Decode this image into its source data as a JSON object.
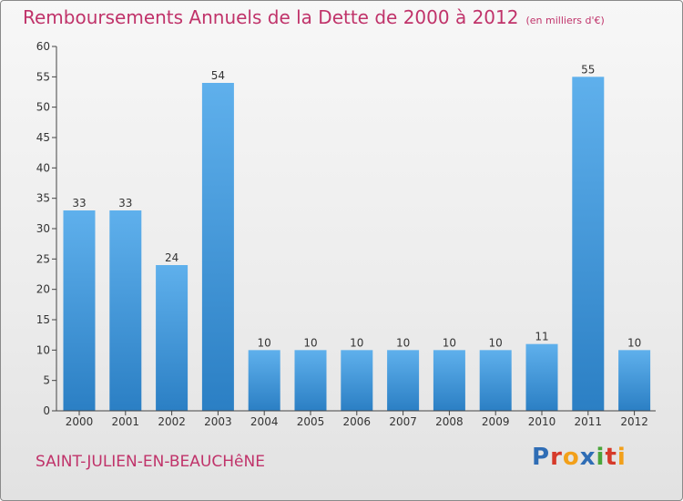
{
  "chart_data": {
    "type": "bar",
    "title": "Remboursements Annuels de la Dette de 2000 à 2012",
    "subtitle": "(en milliers d'€)",
    "categories": [
      "2000",
      "2001",
      "2002",
      "2003",
      "2004",
      "2005",
      "2006",
      "2007",
      "2008",
      "2009",
      "2010",
      "2011",
      "2012"
    ],
    "values": [
      33,
      33,
      24,
      54,
      10,
      10,
      10,
      10,
      10,
      10,
      11,
      55,
      10
    ],
    "data_labels": [
      "33",
      "33",
      "24",
      "54",
      "10",
      "10",
      "10",
      "10",
      "10",
      "10",
      "11",
      "55",
      "10"
    ],
    "ylim": [
      0,
      60
    ],
    "yticks": [
      0,
      5,
      10,
      15,
      20,
      25,
      30,
      35,
      40,
      45,
      50,
      55,
      60
    ],
    "xlabel": "",
    "ylabel": "",
    "grid": false,
    "legend": "none"
  },
  "footer": {
    "commune": "SAINT-JULIEN-EN-BEAUCHêNE"
  },
  "logo": {
    "text": "Proxiti",
    "letters": [
      {
        "char": "P",
        "color": "#2f6db5"
      },
      {
        "char": "r",
        "color": "#d63a2a"
      },
      {
        "char": "o",
        "color": "#f2a01a"
      },
      {
        "char": "x",
        "color": "#2f6db5"
      },
      {
        "char": "i",
        "color": "#4aa53a"
      },
      {
        "char": "t",
        "color": "#d63a2a"
      },
      {
        "char": "i",
        "color": "#f2a01a"
      }
    ]
  },
  "colors": {
    "title": "#c0336a",
    "bar_top": "#5fb0ec",
    "bar_bottom": "#2b7fc4",
    "axis": "#444444"
  }
}
